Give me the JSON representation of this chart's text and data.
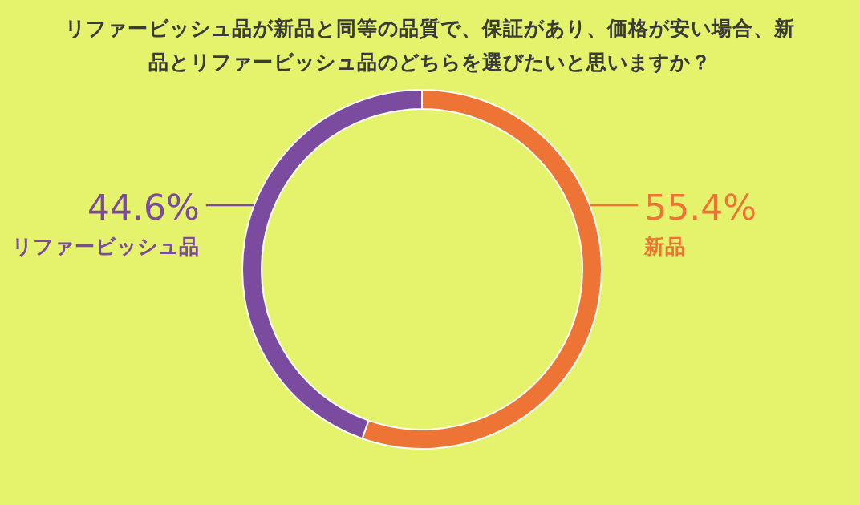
{
  "chart_data": {
    "type": "donut",
    "title": "リファービッシュ品が新品と同等の品質で、保証があり、価格が安い場合、新品とリファービッシュ品のどちらを選びたいと思いますか？",
    "categories": [
      "新品",
      "リファービッシュ品"
    ],
    "values": [
      55.4,
      44.6
    ],
    "colors": [
      "#ee7436",
      "#7b4b9f"
    ],
    "value_labels": [
      "55.4%",
      "44.6%"
    ],
    "legend": false
  }
}
